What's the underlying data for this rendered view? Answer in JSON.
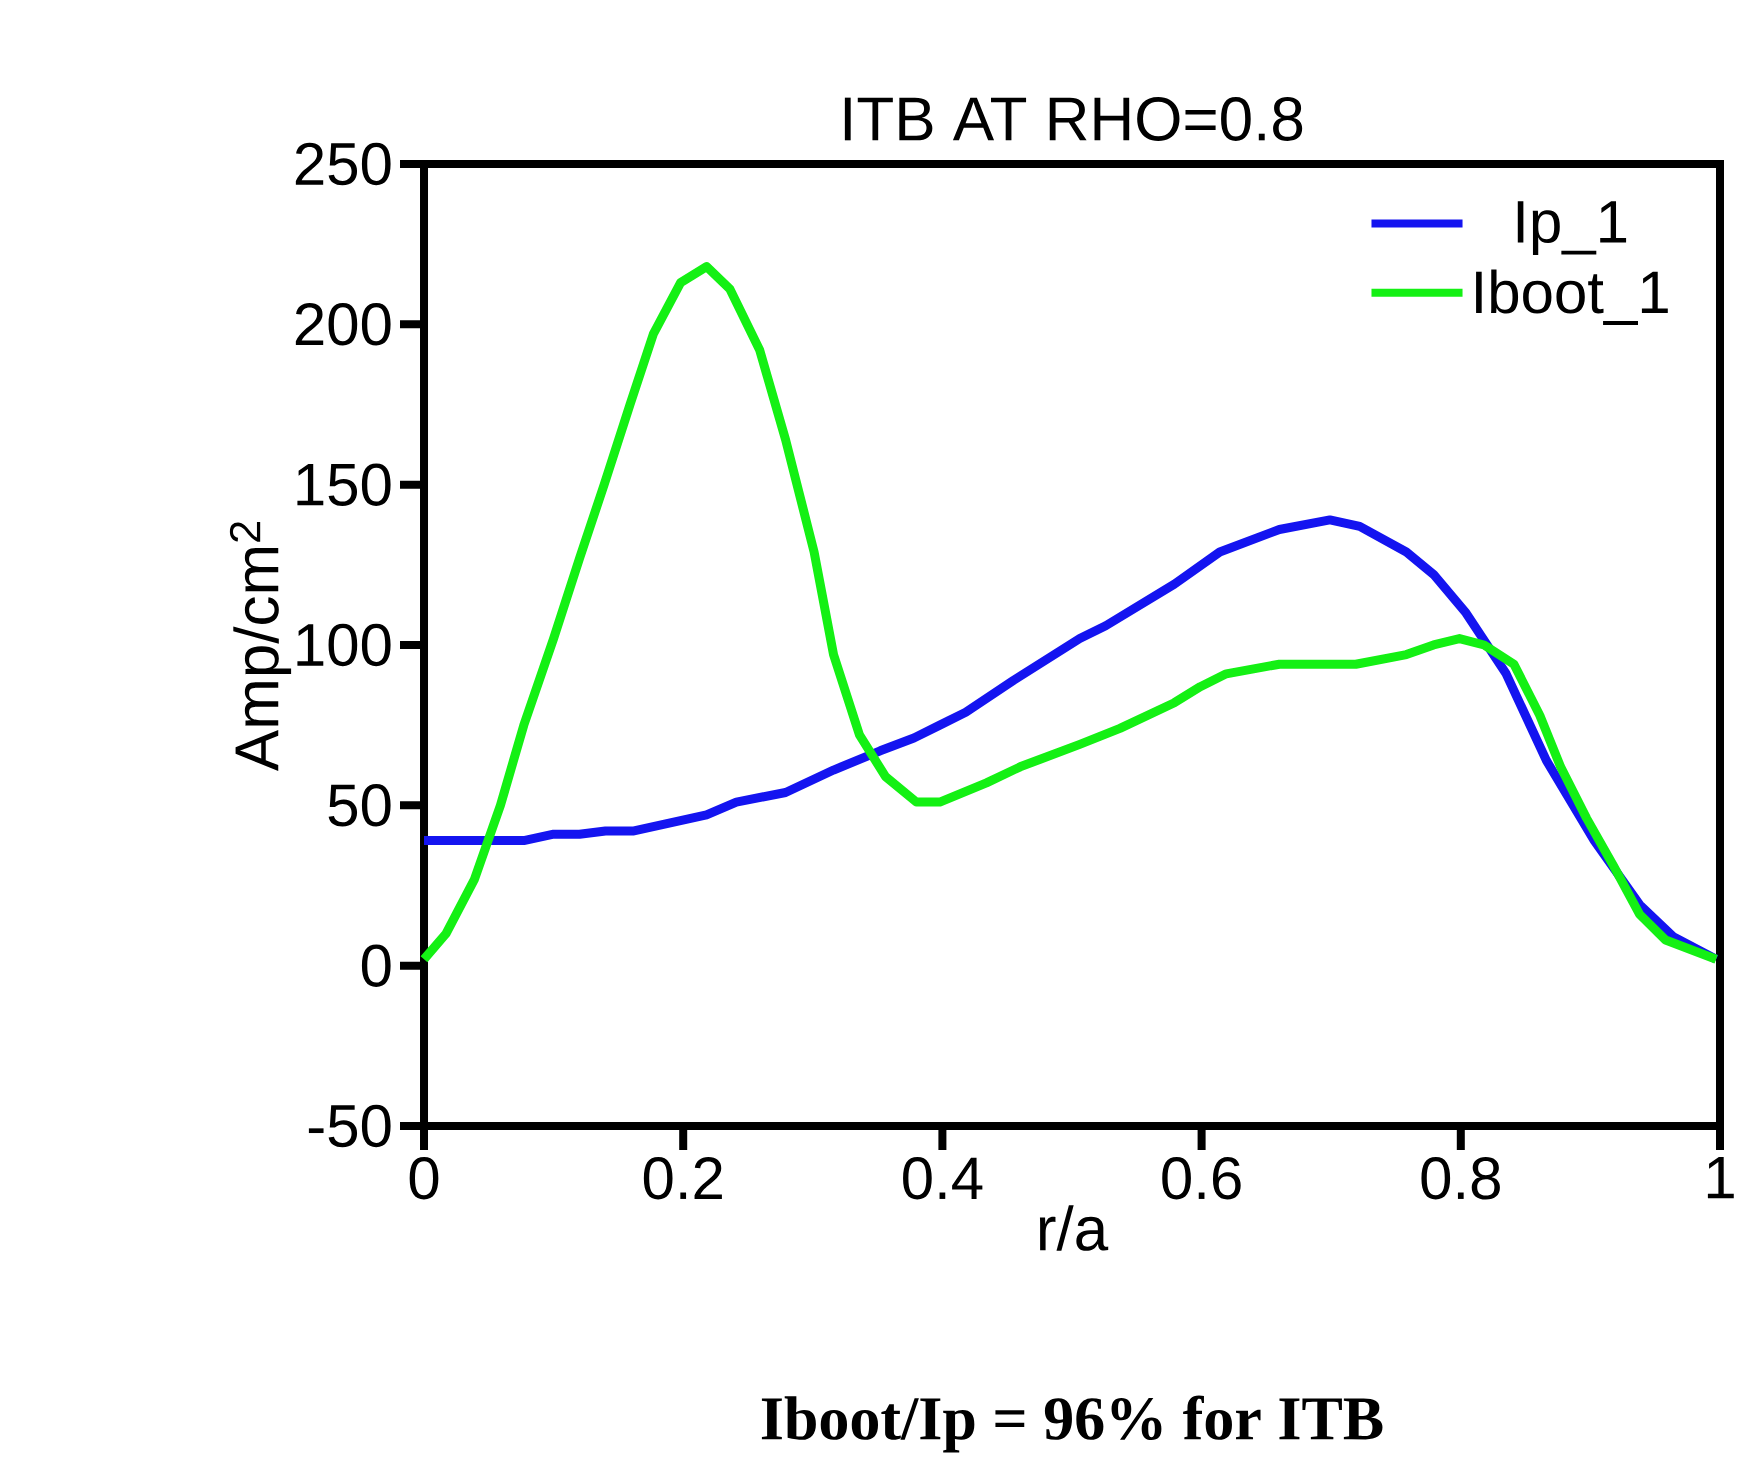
{
  "chart_data": {
    "type": "line",
    "title": "ITB AT RHO=0.8",
    "xlabel": "r/a",
    "ylabel": "Amp/cm$^{2}$",
    "annotations": [
      "**Iboot/Ip = 96% for ITB**"
    ],
    "xlim": [
      0,
      1
    ],
    "xticks": [
      0,
      0.2,
      0.4,
      0.6,
      0.8,
      1
    ],
    "ylim": [
      -50,
      250
    ],
    "yticks": [
      -50,
      0,
      50,
      100,
      150,
      200,
      250
    ],
    "grid": false,
    "legend": "top right",
    "marker": "none",
    "line_style": "solid",
    "series": [
      {
        "name": "Ip_1",
        "color": "#1414f0",
        "x": [
          0,
          0.077,
          0.1,
          0.12,
          0.14,
          0.162,
          0.218,
          0.241,
          0.279,
          0.316,
          0.352,
          0.378,
          0.398,
          0.418,
          0.455,
          0.506,
          0.526,
          0.579,
          0.614,
          0.66,
          0.699,
          0.722,
          0.758,
          0.779,
          0.804,
          0.835,
          0.866,
          0.903,
          0.938,
          0.964,
          0.997
        ],
        "values": [
          39,
          39,
          41,
          41,
          42,
          42,
          47,
          51,
          54,
          61,
          67,
          71,
          75,
          79,
          89,
          102,
          106,
          119,
          129,
          136,
          139,
          137,
          129,
          122,
          110,
          91,
          64,
          39,
          19,
          9,
          2
        ]
      },
      {
        "name": "Iboot_1",
        "color": "#14f014",
        "x": [
          0,
          0.017,
          0.039,
          0.059,
          0.077,
          0.1,
          0.12,
          0.139,
          0.159,
          0.177,
          0.198,
          0.218,
          0.236,
          0.259,
          0.279,
          0.301,
          0.316,
          0.336,
          0.356,
          0.38,
          0.398,
          0.434,
          0.46,
          0.506,
          0.537,
          0.579,
          0.599,
          0.619,
          0.66,
          0.719,
          0.758,
          0.779,
          0.799,
          0.818,
          0.841,
          0.861,
          0.877,
          0.897,
          0.918,
          0.938,
          0.958,
          0.997
        ],
        "values": [
          2,
          10,
          27,
          50,
          75,
          102,
          127,
          150,
          175,
          197,
          213,
          218,
          211,
          192,
          164,
          129,
          97,
          72,
          59,
          51,
          51,
          57,
          62,
          69,
          74,
          82,
          87,
          91,
          94,
          94,
          97,
          100,
          102,
          100,
          94,
          78,
          62,
          46,
          31,
          16,
          8,
          2
        ]
      }
    ]
  }
}
